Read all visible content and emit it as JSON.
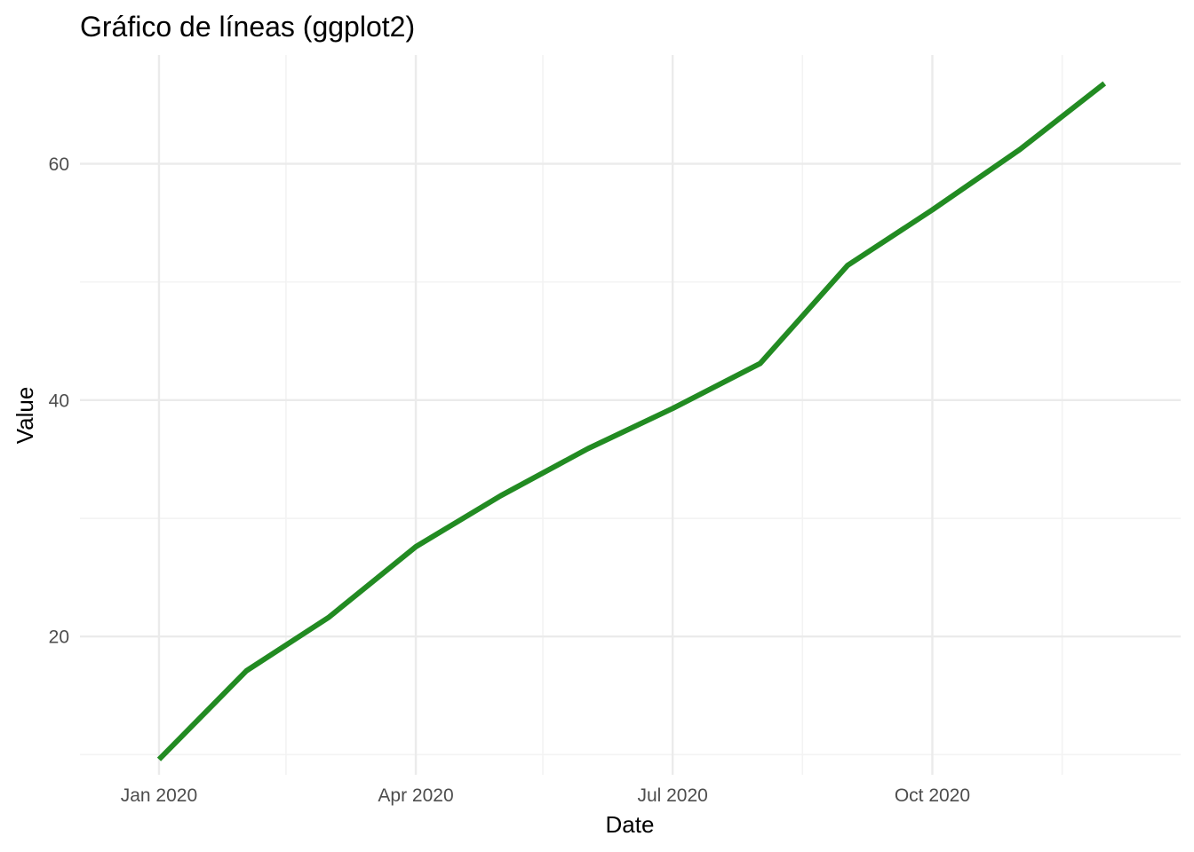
{
  "chart_data": {
    "type": "line",
    "title": "Gráfico de líneas (ggplot2)",
    "xlabel": "Date",
    "ylabel": "Value",
    "x_axis_type": "date",
    "xlim": [
      "2019-12-04",
      "2020-12-28"
    ],
    "ylim": [
      8.3,
      69.2
    ],
    "x_ticks": [
      {
        "date": "2020-01-01",
        "label": "Jan 2020"
      },
      {
        "date": "2020-04-01",
        "label": "Apr 2020"
      },
      {
        "date": "2020-07-01",
        "label": "Jul 2020"
      },
      {
        "date": "2020-10-01",
        "label": "Oct 2020"
      }
    ],
    "x_minor_ticks": [
      "2020-02-15",
      "2020-05-16",
      "2020-08-16",
      "2020-11-16"
    ],
    "y_ticks": [
      20,
      40,
      60
    ],
    "y_minor_ticks": [
      10,
      30,
      50
    ],
    "grid": true,
    "legend": "none",
    "line_color": "#228b22",
    "series": [
      {
        "color": "#228b22",
        "x": [
          "2020-01-01",
          "2020-02-01",
          "2020-03-01",
          "2020-04-01",
          "2020-05-01",
          "2020-06-01",
          "2020-07-01",
          "2020-08-01",
          "2020-09-01",
          "2020-10-01",
          "2020-11-01",
          "2020-12-01"
        ],
        "y": [
          9.6,
          17.1,
          21.6,
          27.6,
          31.9,
          35.9,
          39.3,
          43.1,
          51.4,
          56.1,
          61.2,
          66.8
        ]
      }
    ]
  }
}
